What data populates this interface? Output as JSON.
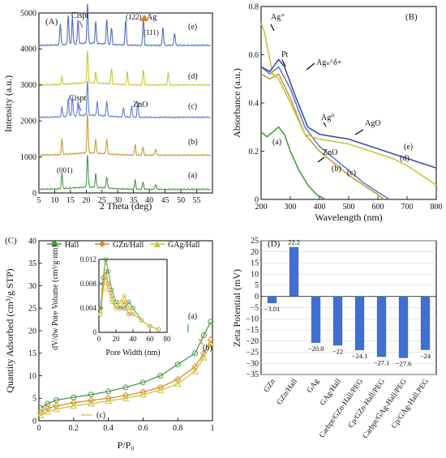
{
  "chart_data": [
    {
      "panel": "(A)",
      "type": "line",
      "xlabel": "2 Theta (deg)",
      "ylabel": "Intensity (a.u.)",
      "xlim": [
        5,
        60
      ],
      "ylim": [
        0,
        5000
      ],
      "xticks": [
        5,
        10,
        15,
        20,
        25,
        30,
        35,
        40,
        45,
        50,
        55
      ],
      "yticks": [
        0,
        1000,
        2000,
        3000,
        4000,
        5000
      ],
      "series": [
        {
          "name": "(a)",
          "color": "#4a9a45",
          "offset": 100,
          "peaks": [
            [
              12.3,
              420
            ],
            [
              20.4,
              900
            ],
            [
              23.0,
              380
            ],
            [
              26.5,
              320
            ],
            [
              35.5,
              250
            ],
            [
              38.0,
              200
            ],
            [
              42.0,
              150
            ]
          ]
        },
        {
          "name": "(b)",
          "color": "#c99a3a",
          "offset": 1050,
          "peaks": [
            [
              12.3,
              420
            ],
            [
              20.4,
              1100
            ],
            [
              23.0,
              380
            ],
            [
              26.5,
              420
            ],
            [
              35.5,
              280
            ],
            [
              38.0,
              220
            ],
            [
              42.0,
              180
            ]
          ]
        },
        {
          "name": "(c)",
          "color": "#5e7fd0",
          "offset": 2100,
          "peaks": [
            [
              12.3,
              250
            ],
            [
              14.3,
              500
            ],
            [
              15.6,
              550
            ],
            [
              17.4,
              380
            ],
            [
              20.4,
              950
            ],
            [
              23.5,
              380
            ],
            [
              26.5,
              420
            ],
            [
              31.8,
              250
            ],
            [
              34.4,
              300
            ],
            [
              36.3,
              420
            ]
          ]
        },
        {
          "name": "(d)",
          "color": "#c9c53a",
          "offset": 3000,
          "peaks": [
            [
              12.3,
              200
            ],
            [
              20.4,
              900
            ],
            [
              23.0,
              300
            ],
            [
              28.0,
              420
            ],
            [
              33.0,
              350
            ],
            [
              38.1,
              420
            ],
            [
              46.0,
              350
            ]
          ]
        },
        {
          "name": "(e)",
          "color": "#4f6fc4",
          "offset": 4100,
          "peaks": [
            [
              11.8,
              600
            ],
            [
              14.3,
              800
            ],
            [
              15.6,
              750
            ],
            [
              17.4,
              650
            ],
            [
              20.4,
              1100
            ],
            [
              23.0,
              600
            ],
            [
              26.5,
              700
            ],
            [
              28.0,
              450
            ],
            [
              32.5,
              700
            ],
            [
              38.1,
              750
            ],
            [
              44.3,
              500
            ],
            [
              48.0,
              350
            ]
          ]
        }
      ],
      "annotations": [
        "Cispt",
        "(122)",
        "Ag",
        "(111)",
        "(d)",
        "Cispt",
        "ZnO",
        "(c)",
        "(b)",
        "(001)",
        "(a)",
        "(e)"
      ]
    },
    {
      "panel": "(B)",
      "type": "line",
      "xlabel": "Wavelength (nm)",
      "ylabel": "Absorbance (a.u.)",
      "xlim": [
        200,
        800
      ],
      "ylim": [
        0,
        0.8
      ],
      "xticks": [
        200,
        300,
        400,
        500,
        600,
        700,
        800
      ],
      "yticks": [
        0,
        0.2,
        0.4,
        0.6,
        0.8
      ],
      "series": [
        {
          "name": "(a)",
          "color": "#4a9a45",
          "x": [
            200,
            220,
            240,
            260,
            280,
            300,
            330,
            360,
            390,
            420
          ],
          "y": [
            0.28,
            0.26,
            0.28,
            0.3,
            0.27,
            0.2,
            0.12,
            0.06,
            0.02,
            0.0
          ]
        },
        {
          "name": "(b)",
          "color": "#c99a3a",
          "x": [
            200,
            230,
            260,
            300,
            350,
            400,
            450,
            500,
            550,
            600,
            620
          ],
          "y": [
            0.52,
            0.5,
            0.52,
            0.42,
            0.27,
            0.2,
            0.15,
            0.1,
            0.06,
            0.02,
            0.0
          ]
        },
        {
          "name": "(c)",
          "color": "#5e7fd0",
          "x": [
            200,
            230,
            260,
            300,
            350,
            400,
            450,
            500,
            550,
            600,
            640
          ],
          "y": [
            0.55,
            0.52,
            0.55,
            0.46,
            0.3,
            0.22,
            0.17,
            0.12,
            0.07,
            0.03,
            0.0
          ]
        },
        {
          "name": "(d)",
          "color": "#c9c53a",
          "x": [
            200,
            210,
            240,
            260,
            300,
            350,
            400,
            450,
            500,
            550,
            600,
            650,
            700,
            750,
            800
          ],
          "y": [
            0.73,
            0.7,
            0.52,
            0.5,
            0.4,
            0.27,
            0.25,
            0.24,
            0.23,
            0.21,
            0.19,
            0.17,
            0.14,
            0.1,
            0.06
          ]
        },
        {
          "name": "(e)",
          "color": "#3f4fa8",
          "x": [
            200,
            230,
            260,
            280,
            320,
            360,
            400,
            450,
            500,
            550,
            600,
            650,
            700,
            750,
            800
          ],
          "y": [
            0.55,
            0.53,
            0.58,
            0.55,
            0.42,
            0.3,
            0.27,
            0.26,
            0.25,
            0.23,
            0.21,
            0.19,
            0.17,
            0.15,
            0.13
          ]
        }
      ],
      "annotations": [
        "Ag⁺",
        "Pt",
        "Agₙ^δ+",
        "Ag⁰",
        "AgO",
        "ZnO",
        "(a)",
        "(b)",
        "(c)",
        "(d)",
        "(e)"
      ]
    },
    {
      "panel": "(C)",
      "type": "line",
      "xlabel": "P/P₀",
      "ylabel": "Quantity Adsorbed (cm³/g STP)",
      "xlim": [
        0,
        1
      ],
      "ylim": [
        0,
        40
      ],
      "xticks": [
        0,
        0.2,
        0.4,
        0.6,
        0.8,
        1
      ],
      "yticks": [
        0,
        5,
        10,
        15,
        20,
        25,
        30,
        35,
        40
      ],
      "xticklabels": [
        "0",
        "0.2",
        "0.4",
        "0.6",
        "0.8",
        "1"
      ],
      "legend": [
        "Hall",
        "GZn/Hall",
        "GAg/Hall"
      ],
      "legend_position": "top",
      "series": [
        {
          "name": "Hall",
          "color": "#4a9a45",
          "marker": "circle",
          "x": [
            0.01,
            0.05,
            0.1,
            0.2,
            0.3,
            0.4,
            0.5,
            0.6,
            0.7,
            0.8,
            0.9,
            0.95,
            0.99
          ],
          "y": [
            2.8,
            3.8,
            4.6,
            5.2,
            5.8,
            6.5,
            7.4,
            8.5,
            10,
            12.5,
            15,
            19,
            22
          ]
        },
        {
          "name": "GZn/Hall",
          "color": "#d98a2e",
          "marker": "diamond",
          "x": [
            0.01,
            0.05,
            0.1,
            0.2,
            0.3,
            0.4,
            0.5,
            0.6,
            0.7,
            0.8,
            0.9,
            0.95,
            0.99
          ],
          "y": [
            1.8,
            2.8,
            3.3,
            4.0,
            4.5,
            5.0,
            5.6,
            6.4,
            7.4,
            9.2,
            12,
            15,
            18
          ]
        },
        {
          "name": "GAg/Hall",
          "color": "#c9c53a",
          "marker": "triangle",
          "x": [
            0.01,
            0.05,
            0.1,
            0.2,
            0.3,
            0.4,
            0.5,
            0.6,
            0.7,
            0.8,
            0.9,
            0.95,
            0.99
          ],
          "y": [
            1.2,
            2.0,
            2.6,
            3.3,
            3.8,
            4.4,
            5.0,
            5.8,
            6.8,
            8.2,
            11,
            14,
            17
          ]
        }
      ],
      "inset": {
        "xlabel": "Pore Width (nm)",
        "ylabel": "dV/dw Pore Volume (cm³/g·nm)",
        "xlim": [
          0,
          80
        ],
        "ylim": [
          0,
          0.012
        ],
        "xticks": [
          0,
          20,
          40,
          60,
          80
        ],
        "yticks": [
          0,
          0.004,
          0.008,
          0.012
        ],
        "yticklabels": [
          "0",
          "0.004",
          "0.008",
          "0.012"
        ],
        "series": [
          {
            "name": "Hall",
            "color": "#4a9a45",
            "x": [
              2,
              5,
              8,
              11,
              15,
              20,
              25,
              30,
              35,
              40,
              50,
              60,
              70
            ],
            "y": [
              0.004,
              0.009,
              0.012,
              0.01,
              0.007,
              0.005,
              0.004,
              0.004,
              0.005,
              0.004,
              0.002,
              0.001,
              0.0005
            ]
          },
          {
            "name": "GZn/Hall",
            "color": "#d98a2e",
            "x": [
              2,
              5,
              8,
              11,
              15,
              20,
              25,
              30,
              35,
              40,
              50,
              60,
              70
            ],
            "y": [
              0.003,
              0.008,
              0.01,
              0.008,
              0.006,
              0.004,
              0.004,
              0.005,
              0.003,
              0.003,
              0.002,
              0.001,
              0.0005
            ]
          },
          {
            "name": "GAg/Hall",
            "color": "#c9c53a",
            "x": [
              2,
              5,
              8,
              11,
              15,
              20,
              25,
              30,
              35,
              40,
              50,
              60,
              70
            ],
            "y": [
              0.003,
              0.007,
              0.009,
              0.007,
              0.005,
              0.004,
              0.005,
              0.006,
              0.004,
              0.003,
              0.002,
              0.001,
              0.0005
            ]
          }
        ]
      },
      "annotations": [
        "(a)",
        "(b)",
        "(c)"
      ]
    },
    {
      "panel": "(D)",
      "type": "bar",
      "ylabel": "Zeta Potential (mV)",
      "ylim": [
        -35,
        25
      ],
      "yticks": [
        -35,
        -30,
        -25,
        -20,
        -15,
        -10,
        -5,
        0,
        5,
        10,
        15,
        20,
        25
      ],
      "categories": [
        "GZn",
        "GZn/Hall",
        "GAg",
        "GAg/Hall",
        "Carbpt/GZn-Hall/PEG",
        "Cp/GZn-Hall/PEG",
        "Carbpt/GAg-Hall/PEG",
        "Cp/GAg-Hall.PEG"
      ],
      "values": [
        -3.01,
        22.2,
        -20.8,
        -22,
        -24.1,
        -27.1,
        -27.6,
        -24
      ],
      "value_labels": [
        "−3.01",
        "22.2",
        "−20.8",
        "−22",
        "−24.1",
        "−27.1",
        "−27.6",
        "−24"
      ],
      "bar_color": "#3f6fd0",
      "grid": true
    }
  ]
}
